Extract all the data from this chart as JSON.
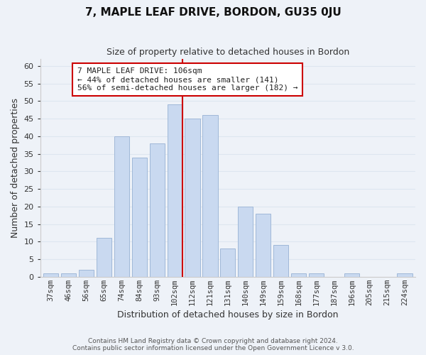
{
  "title": "7, MAPLE LEAF DRIVE, BORDON, GU35 0JU",
  "subtitle": "Size of property relative to detached houses in Bordon",
  "xlabel": "Distribution of detached houses by size in Bordon",
  "ylabel": "Number of detached properties",
  "footer_line1": "Contains HM Land Registry data © Crown copyright and database right 2024.",
  "footer_line2": "Contains public sector information licensed under the Open Government Licence v 3.0.",
  "categories": [
    "37sqm",
    "46sqm",
    "56sqm",
    "65sqm",
    "74sqm",
    "84sqm",
    "93sqm",
    "102sqm",
    "112sqm",
    "121sqm",
    "131sqm",
    "140sqm",
    "149sqm",
    "159sqm",
    "168sqm",
    "177sqm",
    "187sqm",
    "196sqm",
    "205sqm",
    "215sqm",
    "224sqm"
  ],
  "values": [
    1,
    1,
    2,
    11,
    40,
    34,
    38,
    49,
    45,
    46,
    8,
    20,
    18,
    9,
    1,
    1,
    0,
    1,
    0,
    0,
    1
  ],
  "bar_color": "#c9d9f0",
  "bar_edge_color": "#a0b8d8",
  "highlight_bar_index": 7,
  "highlight_line_color": "#cc0000",
  "ylim": [
    0,
    62
  ],
  "yticks": [
    0,
    5,
    10,
    15,
    20,
    25,
    30,
    35,
    40,
    45,
    50,
    55,
    60
  ],
  "annotation_title": "7 MAPLE LEAF DRIVE: 106sqm",
  "annotation_line1": "← 44% of detached houses are smaller (141)",
  "annotation_line2": "56% of semi-detached houses are larger (182) →",
  "annotation_box_color": "#ffffff",
  "annotation_box_edge": "#cc0000",
  "grid_color": "#dde6f0",
  "background_color": "#eef2f8"
}
